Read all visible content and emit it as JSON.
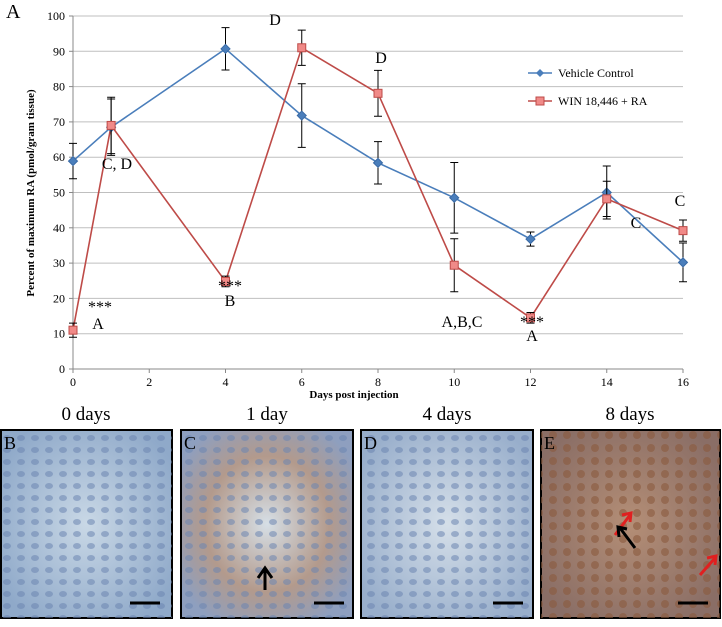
{
  "chart_data": {
    "type": "line",
    "panel_label": "A",
    "xlabel": "Days post injection",
    "ylabel": "Percent of maximum RA (pmol/gram tissue)",
    "x": [
      0,
      1,
      4,
      6,
      8,
      10,
      12,
      14,
      16
    ],
    "xlim": [
      0,
      16
    ],
    "xticks": [
      0,
      2,
      4,
      6,
      8,
      10,
      12,
      14,
      16
    ],
    "ylim": [
      0,
      100
    ],
    "yticks": [
      0,
      10,
      20,
      30,
      40,
      50,
      60,
      70,
      80,
      90,
      100
    ],
    "grid": true,
    "legend": "upper right",
    "series": [
      {
        "name": "Vehicle Control",
        "color": "#4a7ebb",
        "marker": "diamond",
        "values": [
          58.9,
          68.5,
          90.7,
          71.8,
          58.4,
          48.5,
          36.8,
          50,
          30.2
        ],
        "errors": [
          5,
          8,
          6,
          9,
          6,
          10,
          2,
          7.5,
          5.5
        ]
      },
      {
        "name": "WIN 18,446 + RA",
        "color": "#be4b48",
        "marker": "square",
        "values": [
          11,
          69,
          24.8,
          91,
          78.1,
          29.4,
          14.5,
          48.2,
          39.2
        ],
        "errors": [
          2,
          8,
          1.5,
          5,
          6.5,
          7.5,
          1.5,
          5,
          3
        ]
      }
    ],
    "annotations": [
      "***",
      "A",
      "C, D",
      "***",
      "B",
      "D",
      "D",
      "A,B,C",
      "***",
      "A",
      "C",
      "C"
    ]
  },
  "panels": [
    {
      "letter": "B",
      "title": "0 days"
    },
    {
      "letter": "C",
      "title": "1 day"
    },
    {
      "letter": "D",
      "title": "4 days"
    },
    {
      "letter": "E",
      "title": "8 days"
    }
  ]
}
